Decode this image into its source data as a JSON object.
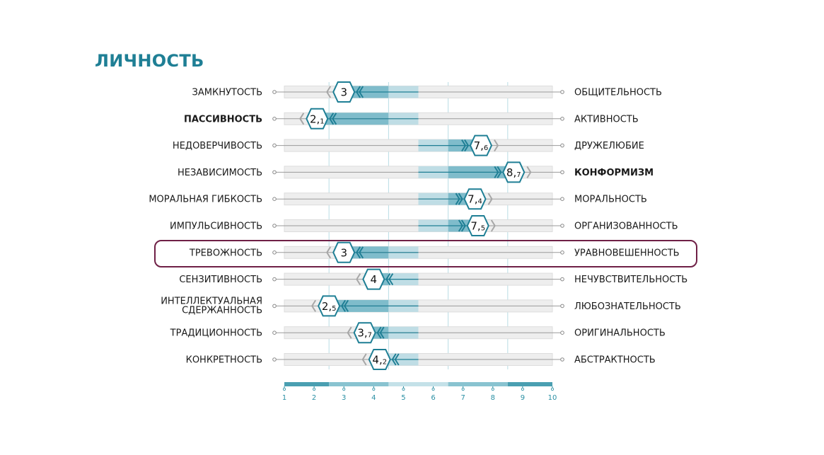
{
  "title": "ЛИЧНОСТЬ",
  "chart_data": {
    "type": "bipolar-scale",
    "xlim": [
      1,
      10
    ],
    "ticks": [
      1,
      2,
      3,
      4,
      5,
      6,
      7,
      8,
      9,
      10
    ],
    "colors": {
      "title": "#1f7f95",
      "dark_band": "#7fbccb",
      "light_band": "#bfdde5",
      "marker": "#1f7f95",
      "highlight_border": "#6f2046",
      "track": "#eeeeee"
    },
    "rows": [
      {
        "left": "ЗАМКНУТОСТЬ",
        "right": "ОБЩИТЕЛЬНОСТЬ",
        "value": 3,
        "label_int": "3",
        "label_dec": "",
        "bold": "none"
      },
      {
        "left": "ПАССИВНОСТЬ",
        "right": "АКТИВНОСТЬ",
        "value": 2.1,
        "label_int": "2,",
        "label_dec": "1",
        "bold": "left"
      },
      {
        "left": "НЕДОВЕРЧИВОСТЬ",
        "right": "ДРУЖЕЛЮБИЕ",
        "value": 7.6,
        "label_int": "7,",
        "label_dec": "6",
        "bold": "none"
      },
      {
        "left": "НЕЗАВИСИМОСТЬ",
        "right": "КОНФОРМИЗМ",
        "value": 8.7,
        "label_int": "8,",
        "label_dec": "7",
        "bold": "right"
      },
      {
        "left": "МОРАЛЬНАЯ ГИБКОСТЬ",
        "right": "МОРАЛЬНОСТЬ",
        "value": 7.4,
        "label_int": "7,",
        "label_dec": "4",
        "bold": "none"
      },
      {
        "left": "ИМПУЛЬСИВНОСТЬ",
        "right": "ОРГАНИЗОВАННОСТЬ",
        "value": 7.5,
        "label_int": "7,",
        "label_dec": "5",
        "bold": "none"
      },
      {
        "left": "ТРЕВОЖНОСТЬ",
        "right": "УРАВНОВЕШЕННОСТЬ",
        "value": 3,
        "label_int": "3",
        "label_dec": "",
        "bold": "none",
        "highlighted": true
      },
      {
        "left": "СЕНЗИТИВНОСТЬ",
        "right": "НЕЧУВСТВИТЕЛЬНОСТЬ",
        "value": 4,
        "label_int": "4",
        "label_dec": "",
        "bold": "none"
      },
      {
        "left": "ИНТЕЛЛЕКТУАЛЬНАЯ СДЕРЖАННОСТЬ",
        "left_lines": [
          "ИНТЕЛЛЕКТУАЛЬНАЯ",
          "СДЕРЖАННОСТЬ"
        ],
        "right": "ЛЮБОЗНАТЕЛЬНОСТЬ",
        "value": 2.5,
        "label_int": "2,",
        "label_dec": "5",
        "bold": "none"
      },
      {
        "left": "ТРАДИЦИОННОСТЬ",
        "right": "ОРИГИНАЛЬНОСТЬ",
        "value": 3.7,
        "label_int": "3,",
        "label_dec": "7",
        "bold": "none"
      },
      {
        "left": "КОНКРЕТНОСТЬ",
        "right": "АБСТРАКТНОСТЬ",
        "value": 4.2,
        "label_int": "4,",
        "label_dec": "2",
        "bold": "none"
      }
    ]
  }
}
